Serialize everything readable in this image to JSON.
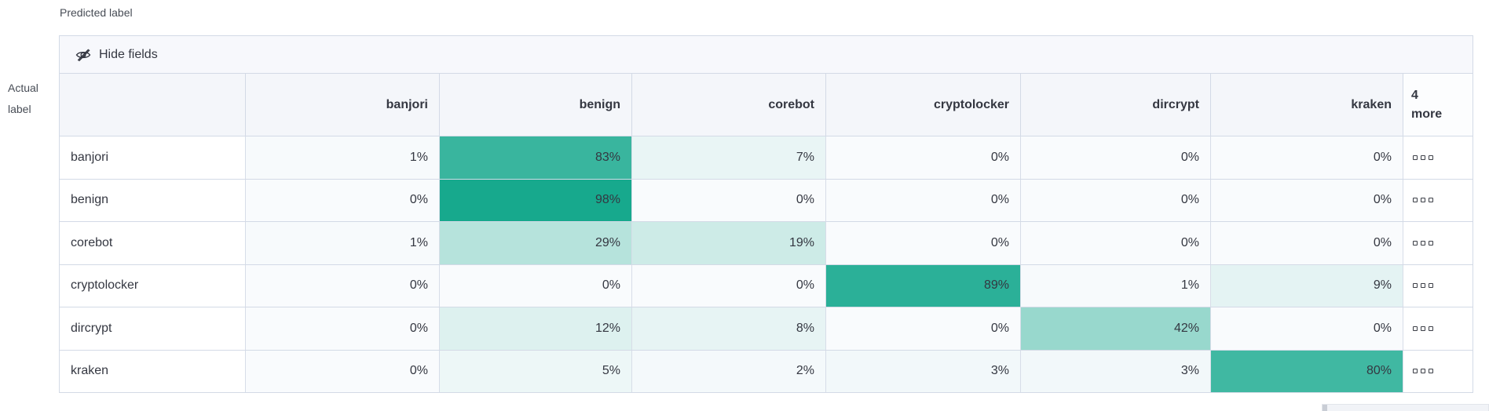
{
  "axis_labels": {
    "predicted": "Predicted label",
    "actual": "Actual label"
  },
  "toolbar": {
    "hide_fields_label": "Hide fields"
  },
  "more_column": {
    "header": "4 more",
    "dots_per_cell": 3
  },
  "colors": {
    "heat_min": "#f9fbfd",
    "heat_max": "#12a78b",
    "header_bg": "#f4f6fa",
    "toolbar_bg": "#f7f8fc",
    "border": "#d3dae6",
    "text": "#343741"
  },
  "chart_data": {
    "type": "heatmap",
    "xlabel": "Predicted label",
    "ylabel": "Actual label",
    "columns": [
      "banjori",
      "benign",
      "corebot",
      "cryptolocker",
      "dircrypt",
      "kraken"
    ],
    "rows": [
      "banjori",
      "benign",
      "corebot",
      "cryptolocker",
      "dircrypt",
      "kraken"
    ],
    "values_percent": [
      [
        1,
        83,
        7,
        0,
        0,
        0
      ],
      [
        0,
        98,
        0,
        0,
        0,
        0
      ],
      [
        1,
        29,
        19,
        0,
        0,
        0
      ],
      [
        0,
        0,
        0,
        89,
        1,
        9
      ],
      [
        0,
        12,
        8,
        0,
        42,
        0
      ],
      [
        0,
        5,
        2,
        3,
        3,
        80
      ]
    ],
    "value_suffix": "%",
    "scale_domain": [
      0,
      100
    ],
    "hidden_columns_count": 4
  }
}
